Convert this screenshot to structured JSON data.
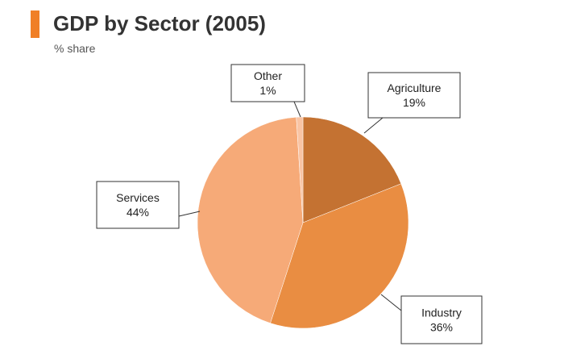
{
  "chart_data": {
    "type": "pie",
    "title": "GDP by Sector (2005)",
    "subtitle": "% share",
    "slices": [
      {
        "name": "Agriculture",
        "value": 19,
        "label": "19%",
        "color": "#c47232"
      },
      {
        "name": "Industry",
        "value": 36,
        "label": "36%",
        "color": "#e98d42"
      },
      {
        "name": "Services",
        "value": 44,
        "label": "44%",
        "color": "#f6aa78"
      },
      {
        "name": "Other",
        "value": 1,
        "label": "1%",
        "color": "#f9c4a4"
      }
    ]
  },
  "colors": {
    "accent": "#f07f26",
    "title": "#333333",
    "subtitle": "#555555"
  }
}
